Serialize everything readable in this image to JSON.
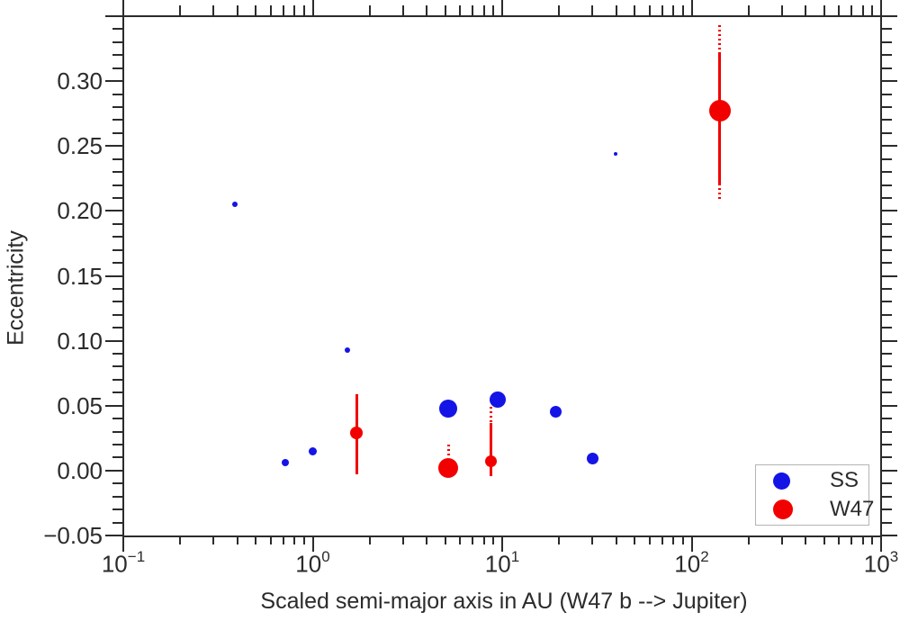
{
  "chart_data": {
    "type": "scatter",
    "title": "",
    "xlabel": "Scaled semi-major axis in AU (W47 b --> Jupiter)",
    "ylabel": "Eccentricity",
    "axes": {
      "x_scale": "log",
      "x_range": [
        0.1,
        1000
      ],
      "y_range": [
        -0.05,
        0.35
      ],
      "y_minor_step": 0.01,
      "grid": false,
      "x_ticks": [
        {
          "value": 0.1,
          "base": "10",
          "exp": "−1"
        },
        {
          "value": 1,
          "base": "10",
          "exp": "0"
        },
        {
          "value": 10,
          "base": "10",
          "exp": "1"
        },
        {
          "value": 100,
          "base": "10",
          "exp": "2"
        },
        {
          "value": 1000,
          "base": "10",
          "exp": "3"
        }
      ],
      "y_ticks": [
        {
          "value": -0.05,
          "label": "−0.05"
        },
        {
          "value": 0.0,
          "label": "0.00"
        },
        {
          "value": 0.05,
          "label": "0.05"
        },
        {
          "value": 0.1,
          "label": "0.10"
        },
        {
          "value": 0.15,
          "label": "0.15"
        },
        {
          "value": 0.2,
          "label": "0.20"
        },
        {
          "value": 0.25,
          "label": "0.25"
        },
        {
          "value": 0.3,
          "label": "0.30"
        },
        {
          "value": 0.35,
          "label": ""
        }
      ]
    },
    "legend": {
      "position": "bottom-right",
      "items": [
        {
          "label": "SS",
          "color": "#1414e6",
          "marker_radius": 9.5
        },
        {
          "label": "W47",
          "color": "#f20000",
          "marker_radius": 11
        }
      ]
    },
    "series": [
      {
        "name": "SS",
        "color": "#1414e6",
        "points": [
          {
            "x": 0.387,
            "y": 0.205,
            "r": 3
          },
          {
            "x": 0.72,
            "y": 0.006,
            "r": 4
          },
          {
            "x": 1.0,
            "y": 0.015,
            "r": 4.5
          },
          {
            "x": 1.52,
            "y": 0.093,
            "r": 3
          },
          {
            "x": 5.2,
            "y": 0.048,
            "r": 10
          },
          {
            "x": 9.5,
            "y": 0.055,
            "r": 9
          },
          {
            "x": 19.2,
            "y": 0.045,
            "r": 6.5
          },
          {
            "x": 30.0,
            "y": 0.009,
            "r": 6.5
          },
          {
            "x": 39.5,
            "y": 0.244,
            "r": 2
          }
        ]
      },
      {
        "name": "W47",
        "color": "#f20000",
        "points": [
          {
            "x": 1.7,
            "y": 0.029,
            "r": 7,
            "error_segments": [
              {
                "e0": -0.003,
                "e1": 0.059,
                "style": "solid"
              }
            ]
          },
          {
            "x": 5.2,
            "y": 0.002,
            "r": 11,
            "error_segments": [
              {
                "e0": 0.01,
                "e1": 0.02,
                "style": "dotted"
              }
            ]
          },
          {
            "x": 8.7,
            "y": 0.007,
            "r": 6.5,
            "error_segments": [
              {
                "e0": -0.004,
                "e1": 0.037,
                "style": "solid"
              },
              {
                "e0": 0.037,
                "e1": 0.049,
                "style": "dotted"
              }
            ]
          },
          {
            "x": 141,
            "y": 0.277,
            "r": 12,
            "error_segments": [
              {
                "e0": 0.209,
                "e1": 0.221,
                "style": "dotted"
              },
              {
                "e0": 0.221,
                "e1": 0.321,
                "style": "solid"
              },
              {
                "e0": 0.321,
                "e1": 0.343,
                "style": "dotted"
              }
            ]
          }
        ]
      }
    ]
  }
}
